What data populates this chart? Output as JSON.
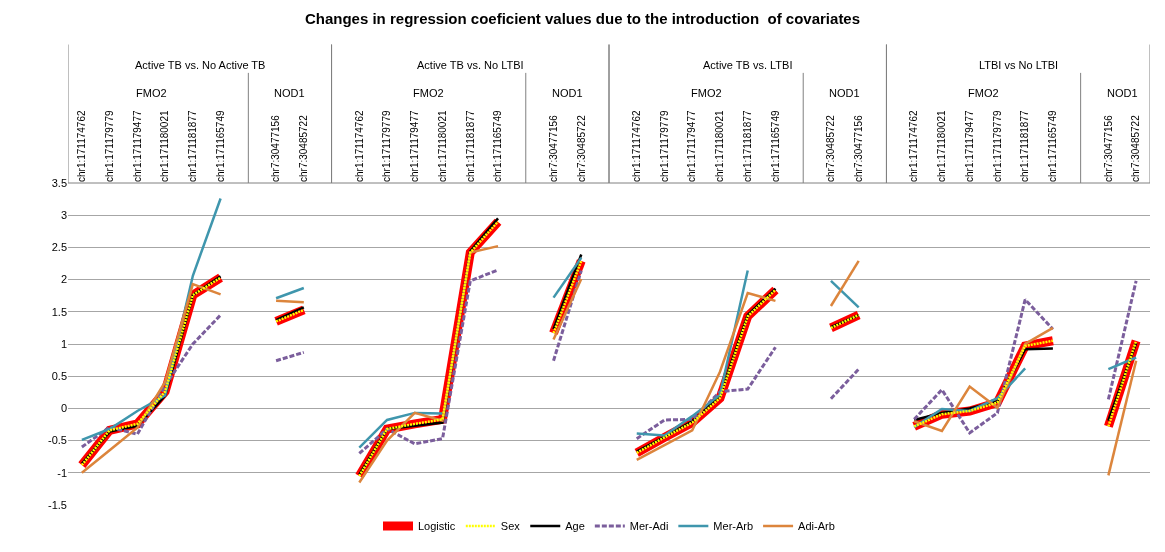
{
  "chart_data": {
    "type": "line",
    "title": "Changes in regression coeficient values due to the introduction  of covariates",
    "annotations": [
      "Active TB vs. No Active TB",
      "Active TB vs. No LTBI",
      "Active TB vs. LTBI",
      "LTBI vs No LTBI",
      "FMO2",
      "NOD1",
      "FMO2",
      "NOD1",
      "FMO2",
      "NOD1",
      "FMO2",
      "NOD1"
    ],
    "categories": [
      "chr1:171174762",
      "chr1:171179779",
      "chr1:171179477",
      "chr1:171180021",
      "chr1:171181877",
      "chr1:171165749",
      null,
      "chr7:30477156",
      "chr7:30485722",
      null,
      "chr1:171174762",
      "chr1:171179779",
      "chr1:171179477",
      "chr1:171180021",
      "chr1:171181877",
      "chr1:171165749",
      null,
      "chr7:30477156",
      "chr7:30485722",
      null,
      "chr1:171174762",
      "chr1:171179779",
      "chr1:171179477",
      "chr1:171180021",
      "chr1:171181877",
      "chr1:171165749",
      null,
      "chr7:30485722",
      "chr7:30477156",
      null,
      "chr1:171174762",
      "chr1:171180021",
      "chr1:171179477",
      "chr1:171179779",
      "chr1:171181877",
      "chr1:171165749",
      null,
      "chr7:30477156",
      "chr7:30485722"
    ],
    "ylim": [
      -1.5,
      3.5
    ],
    "yticks": [
      -1.5,
      -1,
      -0.5,
      0,
      0.5,
      1,
      1.5,
      2,
      2.5,
      3,
      3.5
    ],
    "grid": "y",
    "legend": "bottom",
    "marker": "none",
    "tick_labels": "xy",
    "series": [
      {
        "name": "Logistic",
        "color": "#ff0000",
        "line_style": "solid",
        "values": [
          -0.88,
          -0.34,
          -0.24,
          0.26,
          1.76,
          2.03,
          null,
          1.35,
          1.53,
          null,
          -1.05,
          -0.32,
          -0.24,
          -0.17,
          2.42,
          2.9,
          null,
          1.17,
          2.29,
          null,
          -0.69,
          -0.45,
          -0.22,
          0.16,
          1.43,
          1.84,
          null,
          1.25,
          1.45,
          null,
          -0.28,
          -0.09,
          -0.04,
          0.09,
          0.97,
          1.05,
          null,
          -0.28,
          1.05
        ]
      },
      {
        "name": "Sex",
        "color": "#ffff00",
        "line_style": "dotted",
        "values": [
          -0.88,
          -0.34,
          -0.24,
          0.26,
          1.76,
          2.03,
          null,
          1.35,
          1.53,
          null,
          -1.05,
          -0.32,
          -0.24,
          -0.17,
          2.42,
          2.9,
          null,
          1.17,
          2.29,
          null,
          -0.69,
          -0.45,
          -0.22,
          0.16,
          1.43,
          1.84,
          null,
          1.25,
          1.45,
          null,
          -0.28,
          -0.09,
          -0.04,
          0.09,
          0.97,
          1.05,
          null,
          -0.28,
          1.05
        ]
      },
      {
        "name": "Age",
        "color": "#000000",
        "line_style": "solid",
        "values": [
          -0.86,
          -0.36,
          -0.27,
          0.2,
          1.76,
          2.05,
          null,
          1.37,
          1.57,
          null,
          -1.03,
          -0.32,
          -0.27,
          -0.22,
          2.44,
          2.95,
          null,
          1.23,
          2.39,
          null,
          -0.67,
          -0.44,
          -0.2,
          0.19,
          1.45,
          1.86,
          null,
          1.26,
          1.45,
          null,
          -0.18,
          -0.07,
          0,
          0.11,
          0.92,
          0.93,
          null,
          -0.19,
          1.02
        ]
      },
      {
        "name": "Mer-Adi",
        "color": "#7b5e9c",
        "line_style": "dashed",
        "values": [
          -0.6,
          -0.29,
          -0.4,
          0.35,
          1.0,
          1.45,
          null,
          0.74,
          0.87,
          null,
          -0.7,
          -0.32,
          -0.55,
          -0.47,
          1.98,
          2.15,
          null,
          0.74,
          2.14,
          null,
          -0.47,
          -0.18,
          -0.17,
          0.26,
          0.3,
          0.95,
          null,
          0.15,
          0.61,
          null,
          -0.17,
          0.29,
          -0.38,
          -0.07,
          1.69,
          1.23,
          null,
          0.14,
          1.98
        ]
      },
      {
        "name": "Mer-Arb",
        "color": "#3f96ad",
        "line_style": "solid",
        "values": [
          -0.49,
          -0.32,
          -0.04,
          0.2,
          2.06,
          3.26,
          null,
          1.71,
          1.87,
          null,
          -0.61,
          -0.18,
          -0.07,
          -0.08,
          null,
          null,
          null,
          1.72,
          2.34,
          null,
          -0.39,
          -0.42,
          -0.12,
          0.21,
          2.14,
          null,
          null,
          1.98,
          1.57,
          null,
          -0.29,
          -0.01,
          -0.04,
          0.16,
          0.62,
          null,
          null,
          0.61,
          0.79
        ]
      },
      {
        "name": "Adi-Arb",
        "color": "#dc853c",
        "line_style": "solid",
        "values": [
          -1.0,
          -0.65,
          -0.3,
          0.41,
          1.93,
          1.77,
          null,
          1.67,
          1.65,
          null,
          -1.15,
          -0.5,
          -0.07,
          -0.19,
          2.42,
          2.52,
          null,
          1.07,
          2.01,
          null,
          -0.8,
          -0.57,
          -0.34,
          0.57,
          1.79,
          1.67,
          null,
          1.59,
          2.29,
          null,
          -0.2,
          -0.35,
          0.34,
          0.01,
          1.0,
          1.25,
          null,
          -1.04,
          0.74
        ]
      }
    ]
  }
}
